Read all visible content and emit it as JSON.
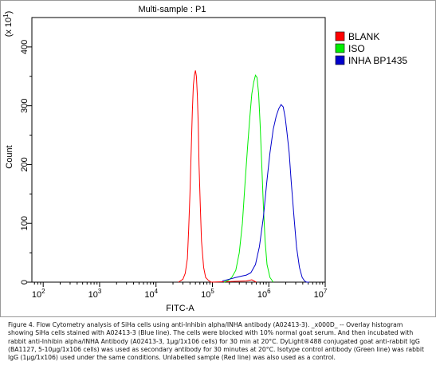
{
  "chart_data": {
    "type": "histogram",
    "title": "Multi-sample : P1",
    "xlabel": "FITC-A",
    "ylabel": "Count",
    "ylabel_multiplier": "(x 10",
    "ylabel_multiplier_exp": "1",
    "ylabel_multiplier_close": ")",
    "x_scale": "log",
    "xlim": [
      63,
      10000000
    ],
    "ylim": [
      0,
      450
    ],
    "x_ticks": [
      {
        "value": 100,
        "base": "10",
        "exp": "2"
      },
      {
        "value": 1000,
        "base": "10",
        "exp": "3"
      },
      {
        "value": 10000,
        "base": "10",
        "exp": "4"
      },
      {
        "value": 100000,
        "base": "10",
        "exp": "5"
      },
      {
        "value": 1000000,
        "base": "10",
        "exp": "6"
      },
      {
        "value": 10000000,
        "base": "10",
        "exp": "7"
      }
    ],
    "y_ticks": [
      {
        "value": 0,
        "label": "0"
      },
      {
        "value": 100,
        "label": "100"
      },
      {
        "value": 200,
        "label": "200"
      },
      {
        "value": 300,
        "label": "300"
      },
      {
        "value": 400,
        "label": "400"
      }
    ],
    "grid": false,
    "legend_position": "top-right",
    "series": [
      {
        "name": "BLANK",
        "color": "#ff0000",
        "x": [
          25000,
          30000,
          33000,
          36000,
          38000,
          40000,
          42000,
          44000,
          46000,
          48000,
          50000,
          52000,
          54000,
          56000,
          58000,
          61000,
          64000,
          70000,
          76000,
          85000,
          95000,
          400000,
          500000,
          600000
        ],
        "y": [
          0,
          5,
          15,
          40,
          90,
          150,
          220,
          290,
          335,
          352,
          360,
          350,
          320,
          270,
          200,
          130,
          70,
          25,
          8,
          3,
          0,
          2,
          4,
          0
        ]
      },
      {
        "name": "ISO",
        "color": "#00ee00",
        "x": [
          160000,
          190000,
          220000,
          260000,
          300000,
          340000,
          380000,
          420000,
          460000,
          500000,
          540000,
          580000,
          620000,
          660000,
          700000,
          750000,
          800000,
          860000,
          930000,
          1050000,
          1200000
        ],
        "y": [
          0,
          3,
          8,
          20,
          50,
          100,
          170,
          230,
          280,
          320,
          340,
          352,
          348,
          320,
          270,
          200,
          130,
          70,
          30,
          8,
          0
        ]
      },
      {
        "name": "INHA BP1435",
        "color": "#0000cc",
        "x": [
          150000,
          200000,
          260000,
          320000,
          400000,
          480000,
          580000,
          680000,
          800000,
          920000,
          1050000,
          1200000,
          1350000,
          1500000,
          1650000,
          1800000,
          1950000,
          2100000,
          2300000,
          2500000,
          2800000,
          3100000,
          3500000,
          3900000,
          4300000,
          4700000,
          5200000
        ],
        "y": [
          2,
          5,
          8,
          10,
          12,
          16,
          30,
          60,
          110,
          170,
          220,
          260,
          282,
          295,
          302,
          298,
          280,
          255,
          220,
          170,
          110,
          60,
          25,
          8,
          2,
          0,
          0
        ]
      }
    ]
  },
  "caption_text": "Figure 4. Flow Cytometry analysis of SiHa cells using anti-Inhibin alpha/INHA antibody (A02413-3). _x000D_ -- Overlay histogram showing SiHa cells stained with A02413-3 (Blue line). The cells were blocked with 10% normal goat serum. And then incubated with rabbit anti-Inhibin alpha/INHA Antibody (A02413-3, 1μg/1x106 cells) for 30 min at 20°C. DyLight®488 conjugated goat anti-rabbit IgG (BA1127, 5-10μg/1x106 cells) was used as secondary antibody for 30 minutes at 20°C. Isotype control antibody (Green line) was rabbit IgG (1μg/1x106) used under the same conditions. Unlabelled sample (Red line) was also used as a control."
}
